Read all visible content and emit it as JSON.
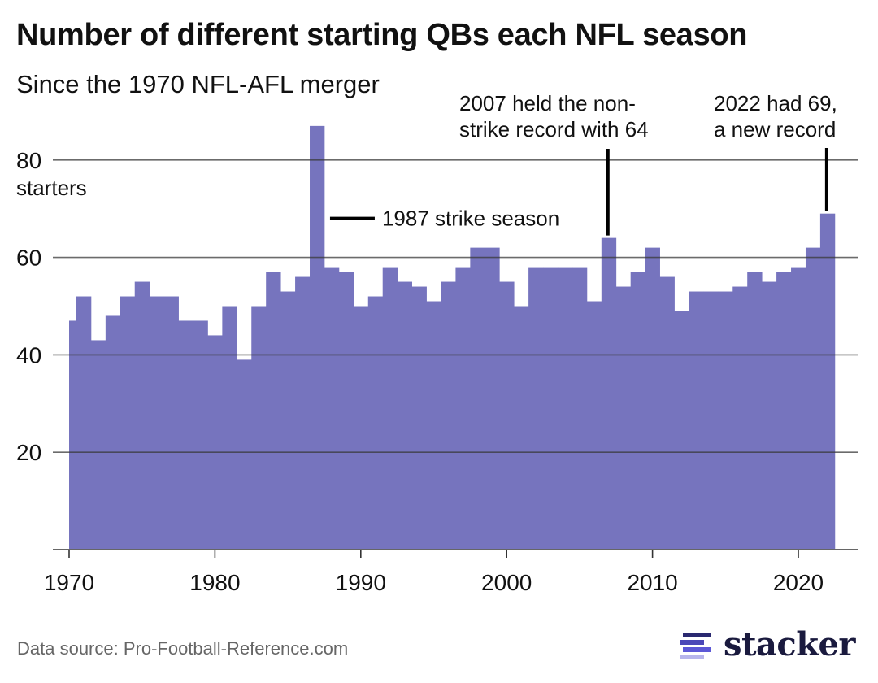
{
  "title": "Number of different starting QBs each NFL season",
  "subtitle": "Since the 1970 NFL-AFL merger",
  "footer": {
    "source": "Data source: Pro-Football-Reference.com",
    "logo_text": "stacker",
    "logo_icon": "stacked-bars-icon"
  },
  "colors": {
    "bar": "#7674be",
    "gridline": "#666666",
    "text": "#111111",
    "annotation_line": "#000000",
    "logo_bars": [
      "#2a2970",
      "#4a47b8",
      "#5c58d6",
      "#b7b5ec"
    ],
    "logo_text": "#1a1a3e"
  },
  "chart_data": {
    "type": "area",
    "style": "step-middle",
    "title": "Number of different starting QBs each NFL season",
    "subtitle": "Since the 1970 NFL-AFL merger",
    "xlabel": "",
    "ylabel": "starters",
    "ylim": [
      0,
      87
    ],
    "xlim": [
      1970,
      2022
    ],
    "grid": true,
    "y_ticks": [
      {
        "value": 80,
        "label": "80"
      },
      {
        "value": 60,
        "label": "60"
      },
      {
        "value": 40,
        "label": "40"
      },
      {
        "value": 20,
        "label": "20"
      }
    ],
    "y_unit_label": "starters",
    "x_ticks": [
      {
        "value": 1970,
        "label": "1970"
      },
      {
        "value": 1980,
        "label": "1980"
      },
      {
        "value": 1990,
        "label": "1990"
      },
      {
        "value": 2000,
        "label": "2000"
      },
      {
        "value": 2010,
        "label": "2010"
      },
      {
        "value": 2020,
        "label": "2020"
      }
    ],
    "x": [
      1970,
      1971,
      1972,
      1973,
      1974,
      1975,
      1976,
      1977,
      1978,
      1979,
      1980,
      1981,
      1982,
      1983,
      1984,
      1985,
      1986,
      1987,
      1988,
      1989,
      1990,
      1991,
      1992,
      1993,
      1994,
      1995,
      1996,
      1997,
      1998,
      1999,
      2000,
      2001,
      2002,
      2003,
      2004,
      2005,
      2006,
      2007,
      2008,
      2009,
      2010,
      2011,
      2012,
      2013,
      2014,
      2015,
      2016,
      2017,
      2018,
      2019,
      2020,
      2021,
      2022
    ],
    "series": [
      {
        "name": "Starting QBs",
        "values": [
          47,
          52,
          43,
          48,
          52,
          55,
          52,
          52,
          47,
          47,
          44,
          50,
          39,
          50,
          57,
          53,
          56,
          87,
          58,
          57,
          50,
          52,
          58,
          55,
          54,
          51,
          55,
          58,
          62,
          62,
          55,
          50,
          58,
          58,
          58,
          58,
          51,
          64,
          54,
          57,
          62,
          56,
          49,
          53,
          53,
          53,
          54,
          57,
          55,
          57,
          58,
          62,
          69
        ]
      }
    ],
    "annotations": [
      {
        "id": "strike",
        "year": 1987,
        "y": 68,
        "lines": [
          "1987 strike season"
        ],
        "type": "horizontal"
      },
      {
        "id": "record2007",
        "year": 2007,
        "value": 64,
        "lines": [
          "2007 held the non-",
          "strike record with 64"
        ],
        "type": "vertical"
      },
      {
        "id": "record2022",
        "year": 2022,
        "value": 69,
        "lines": [
          "2022 had 69,",
          "a new record"
        ],
        "type": "vertical"
      }
    ]
  }
}
